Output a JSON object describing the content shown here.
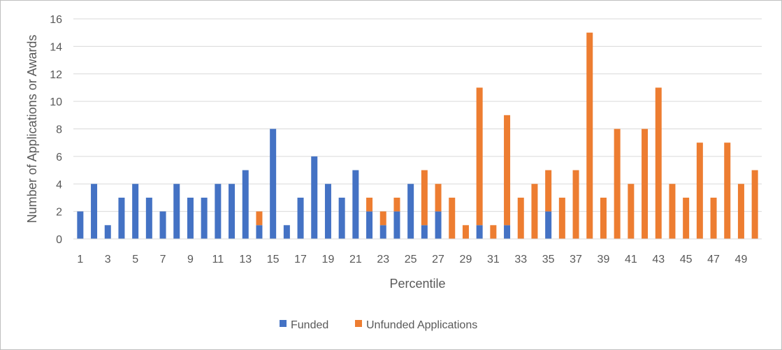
{
  "chart_data": {
    "type": "bar",
    "stacked": true,
    "title": "",
    "xlabel": "Percentile",
    "ylabel": "Number of Applications or Awards",
    "ylim": [
      0,
      16
    ],
    "y_ticks": [
      0,
      2,
      4,
      6,
      8,
      10,
      12,
      14,
      16
    ],
    "grid": "horizontal",
    "legend_position": "bottom",
    "categories": [
      1,
      2,
      3,
      4,
      5,
      6,
      7,
      8,
      9,
      10,
      11,
      12,
      13,
      14,
      15,
      16,
      17,
      18,
      19,
      20,
      21,
      22,
      23,
      24,
      25,
      26,
      27,
      28,
      29,
      30,
      31,
      32,
      33,
      34,
      35,
      36,
      37,
      38,
      39,
      40,
      41,
      42,
      43,
      44,
      45,
      46,
      47,
      48,
      49,
      50
    ],
    "category_labels_shown": [
      1,
      3,
      5,
      7,
      9,
      11,
      13,
      15,
      17,
      19,
      21,
      23,
      25,
      27,
      29,
      31,
      33,
      35,
      37,
      39,
      41,
      43,
      45,
      47,
      49
    ],
    "series": [
      {
        "name": "Funded",
        "color": "#4472c4",
        "values": [
          2,
          4,
          1,
          3,
          4,
          3,
          2,
          4,
          3,
          3,
          4,
          4,
          5,
          1,
          8,
          1,
          3,
          6,
          4,
          3,
          5,
          2,
          1,
          2,
          4,
          1,
          2,
          0,
          0,
          1,
          0,
          1,
          0,
          0,
          2,
          0,
          0,
          0,
          0,
          0,
          0,
          0,
          0,
          0,
          0,
          0,
          0,
          0,
          0,
          0
        ]
      },
      {
        "name": "Unfunded Applications",
        "color": "#ed7d31",
        "values": [
          0,
          0,
          0,
          0,
          0,
          0,
          0,
          0,
          0,
          0,
          0,
          0,
          0,
          1,
          0,
          0,
          0,
          0,
          0,
          0,
          0,
          1,
          1,
          1,
          0,
          4,
          2,
          3,
          1,
          10,
          1,
          8,
          3,
          4,
          3,
          3,
          5,
          15,
          3,
          8,
          4,
          8,
          11,
          4,
          3,
          7,
          3,
          7,
          4,
          5
        ]
      }
    ]
  }
}
